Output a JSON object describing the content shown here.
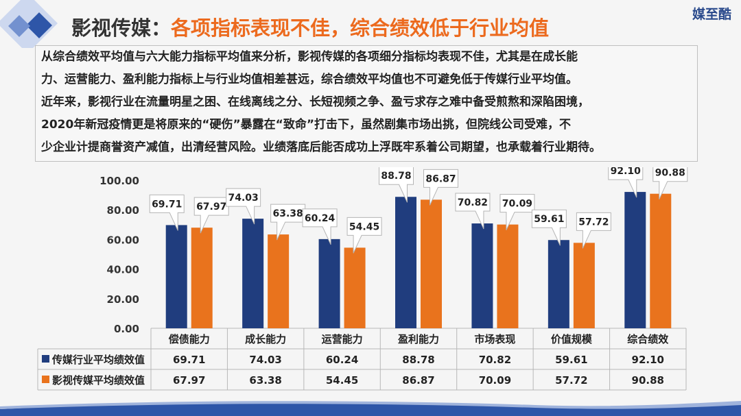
{
  "brand": "媒至酷",
  "title": {
    "prefix": "影视传媒：",
    "highlight": "各项指标表现不佳，综合绩效低于行业均值"
  },
  "description_lines": [
    "从综合绩效平均值与六大能力指标平均值来分析，影视传媒的各项细分指标均表现不佳，尤其是在成长能",
    "力、运营能力、盈利能力指标上与行业均值相差甚远，综合绩效平均值也不可避免低于传媒行业平均值。",
    "近年来，影视行业在流量明星之困、在线离线之分、长短视频之争、盈亏求存之难中备受煎熬和深陷困境，",
    "2020年新冠疫情更是将原来的“硬伤”暴露在“致命”打击下，虽然剧集市场出挑，但院线公司受难，不",
    "少企业计提商誉资产减值，出清经营风险。业绩落底后能否成功上浮既牢系着公司期望，也承载着行业期待。"
  ],
  "colors": {
    "accent": "#ec6a1e",
    "series1": "#203d7e",
    "series2": "#e9731d",
    "title_dark": "#333333"
  },
  "chart_data": {
    "type": "bar",
    "categories": [
      "偿债能力",
      "成长能力",
      "运营能力",
      "盈利能力",
      "市场表现",
      "价值规模",
      "综合绩效"
    ],
    "series": [
      {
        "name": "传媒行业平均绩效值",
        "values": [
          69.71,
          74.03,
          60.24,
          88.78,
          70.82,
          59.61,
          92.1
        ],
        "labels": [
          "69.71",
          "74.03",
          "60.24",
          "88.78",
          "70.82",
          "59.61",
          "92.10"
        ]
      },
      {
        "name": "影视传媒平均绩效值",
        "values": [
          67.97,
          63.38,
          54.45,
          86.87,
          70.09,
          57.72,
          90.88
        ],
        "labels": [
          "67.97",
          "63.38",
          "54.45",
          "86.87",
          "70.09",
          "57.72",
          "90.88"
        ]
      }
    ],
    "ylim": [
      0,
      100
    ],
    "yticks": [
      "0.00",
      "20.00",
      "40.00",
      "60.00",
      "80.00",
      "100.00"
    ],
    "grid": false,
    "legend": "data table below chart"
  }
}
